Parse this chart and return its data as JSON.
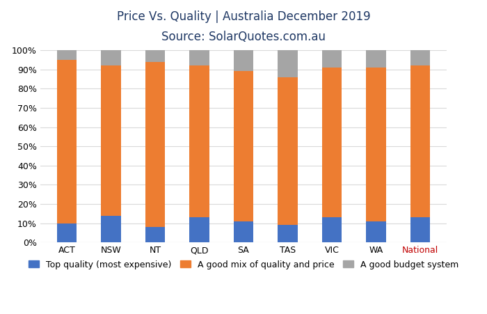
{
  "categories": [
    "ACT",
    "NSW",
    "NT",
    "QLD",
    "SA",
    "TAS",
    "VIC",
    "WA",
    "National"
  ],
  "blue": [
    10,
    14,
    8,
    13,
    11,
    9,
    13,
    11,
    13
  ],
  "orange": [
    85,
    78,
    86,
    79,
    78,
    77,
    78,
    80,
    79
  ],
  "gray": [
    5,
    8,
    6,
    8,
    11,
    14,
    9,
    9,
    8
  ],
  "blue_color": "#4472c4",
  "orange_color": "#ed7d31",
  "gray_color": "#a5a5a5",
  "title_line1": "Price Vs. Quality | Australia December 2019",
  "title_line2": "Source: SolarQuotes.com.au",
  "title_color": "#1f3864",
  "legend_labels": [
    "Top quality (most expensive)",
    "A good mix of quality and price",
    "A good budget system"
  ],
  "ylim": [
    0,
    100
  ],
  "bar_width": 0.45,
  "grid_color": "#d9d9d9",
  "background_color": "#ffffff",
  "title_fontsize": 12,
  "subtitle_fontsize": 12,
  "tick_fontsize": 9,
  "legend_fontsize": 9,
  "national_color": "#c00000"
}
